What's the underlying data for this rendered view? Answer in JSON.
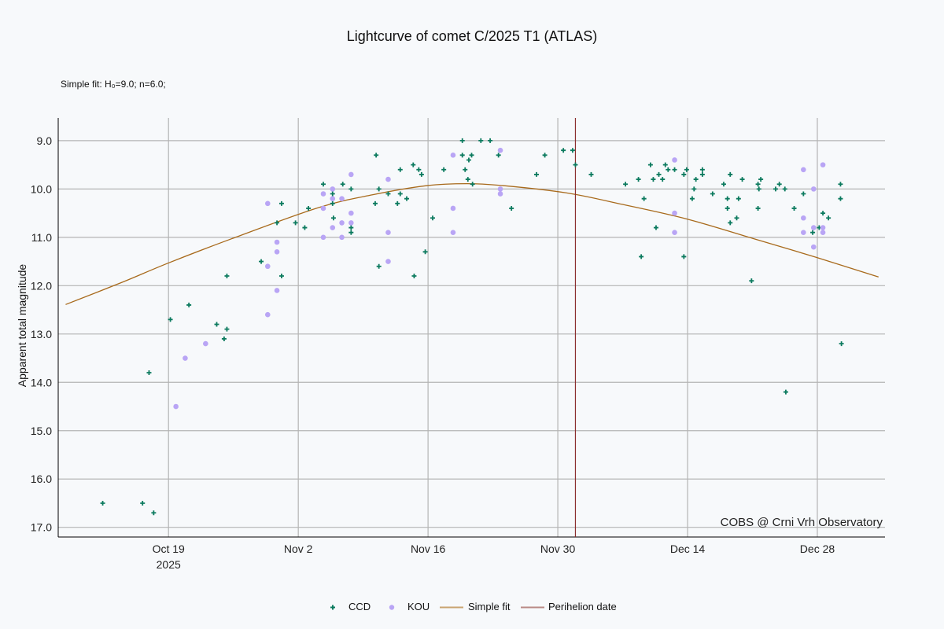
{
  "chart_data": {
    "type": "scatter",
    "title": "Lightcurve of comet C/2025 T1 (ATLAS)",
    "subtitle": "Simple fit: H₀=9.0; n=6.0;",
    "xlabel": "",
    "ylabel": "Apparent total magnitude",
    "x_unit": "days since 2025-10-19",
    "xlim": [
      -11.9,
      77.3
    ],
    "ylim": [
      17.2,
      8.53
    ],
    "y_inverted": true,
    "grid": true,
    "x_ticks": [
      {
        "value": 0,
        "label": "Oct 19",
        "sublabel": "2025"
      },
      {
        "value": 14,
        "label": "Nov 2"
      },
      {
        "value": 28,
        "label": "Nov 16"
      },
      {
        "value": 42,
        "label": "Nov 30"
      },
      {
        "value": 56,
        "label": "Dec 14"
      },
      {
        "value": 70,
        "label": "Dec 28"
      }
    ],
    "y_ticks": [
      {
        "value": 9,
        "label": "9.0"
      },
      {
        "value": 10,
        "label": "10.0"
      },
      {
        "value": 11,
        "label": "11.0"
      },
      {
        "value": 12,
        "label": "12.0"
      },
      {
        "value": 13,
        "label": "13.0"
      },
      {
        "value": 14,
        "label": "14.0"
      },
      {
        "value": 15,
        "label": "15.0"
      },
      {
        "value": 16,
        "label": "16.0"
      },
      {
        "value": 17,
        "label": "17.0"
      }
    ],
    "watermark": "COBS @ Crni Vrh Observatory",
    "legend_position": "bottom-center",
    "series": [
      {
        "name": "CCD",
        "kind": "marker-plus",
        "color": "#0b7a5e",
        "points": [
          [
            -7.1,
            16.5
          ],
          [
            -2.8,
            16.5
          ],
          [
            -1.6,
            16.7
          ],
          [
            -2.1,
            13.8
          ],
          [
            0.2,
            12.7
          ],
          [
            2.2,
            12.4
          ],
          [
            5.2,
            12.8
          ],
          [
            6.3,
            12.9
          ],
          [
            6.0,
            13.1
          ],
          [
            6.3,
            11.8
          ],
          [
            10.0,
            11.5
          ],
          [
            11.7,
            10.7
          ],
          [
            12.2,
            10.3
          ],
          [
            12.2,
            11.8
          ],
          [
            13.7,
            10.7
          ],
          [
            14.7,
            10.8
          ],
          [
            15.1,
            10.4
          ],
          [
            16.7,
            9.9
          ],
          [
            17.7,
            10.1
          ],
          [
            17.7,
            10.3
          ],
          [
            17.8,
            10.6
          ],
          [
            18.8,
            9.9
          ],
          [
            19.7,
            10.0
          ],
          [
            19.7,
            10.8
          ],
          [
            19.7,
            10.9
          ],
          [
            22.4,
            9.3
          ],
          [
            22.7,
            10.0
          ],
          [
            22.3,
            10.3
          ],
          [
            22.7,
            11.6
          ],
          [
            23.7,
            10.1
          ],
          [
            25.0,
            9.6
          ],
          [
            25.0,
            10.1
          ],
          [
            24.7,
            10.3
          ],
          [
            25.7,
            10.2
          ],
          [
            26.4,
            9.5
          ],
          [
            27.0,
            9.6
          ],
          [
            27.3,
            9.7
          ],
          [
            26.5,
            11.8
          ],
          [
            27.7,
            11.3
          ],
          [
            28.5,
            10.6
          ],
          [
            29.7,
            9.6
          ],
          [
            31.7,
            9.0
          ],
          [
            31.7,
            9.3
          ],
          [
            32.4,
            9.4
          ],
          [
            32.7,
            9.3
          ],
          [
            32.0,
            9.6
          ],
          [
            32.3,
            9.8
          ],
          [
            32.8,
            9.9
          ],
          [
            33.7,
            9.0
          ],
          [
            34.7,
            9.0
          ],
          [
            35.6,
            9.3
          ],
          [
            37.0,
            10.4
          ],
          [
            39.7,
            9.7
          ],
          [
            40.6,
            9.3
          ],
          [
            42.6,
            9.2
          ],
          [
            43.6,
            9.2
          ],
          [
            43.9,
            9.5
          ],
          [
            45.6,
            9.7
          ],
          [
            49.3,
            9.9
          ],
          [
            50.7,
            9.8
          ],
          [
            51.3,
            10.2
          ],
          [
            51.0,
            11.4
          ],
          [
            52.0,
            9.5
          ],
          [
            52.3,
            9.8
          ],
          [
            52.6,
            10.8
          ],
          [
            52.9,
            9.7
          ],
          [
            53.3,
            9.8
          ],
          [
            53.6,
            9.5
          ],
          [
            53.9,
            9.6
          ],
          [
            54.6,
            9.6
          ],
          [
            55.6,
            9.7
          ],
          [
            55.9,
            9.6
          ],
          [
            56.7,
            10.0
          ],
          [
            56.5,
            10.2
          ],
          [
            55.6,
            11.4
          ],
          [
            56.9,
            9.8
          ],
          [
            57.6,
            9.6
          ],
          [
            57.6,
            9.7
          ],
          [
            58.7,
            10.1
          ],
          [
            59.9,
            9.9
          ],
          [
            60.6,
            9.7
          ],
          [
            60.3,
            10.2
          ],
          [
            60.3,
            10.4
          ],
          [
            60.6,
            10.7
          ],
          [
            61.3,
            10.6
          ],
          [
            61.5,
            10.2
          ],
          [
            61.9,
            9.8
          ],
          [
            62.9,
            11.9
          ],
          [
            63.6,
            9.9
          ],
          [
            63.7,
            10.0
          ],
          [
            63.6,
            10.4
          ],
          [
            63.9,
            9.8
          ],
          [
            65.5,
            10.0
          ],
          [
            65.9,
            9.9
          ],
          [
            66.5,
            10.0
          ],
          [
            66.6,
            14.2
          ],
          [
            67.5,
            10.4
          ],
          [
            68.5,
            10.1
          ],
          [
            69.5,
            10.9
          ],
          [
            70.2,
            10.8
          ],
          [
            70.6,
            10.5
          ],
          [
            71.2,
            10.6
          ],
          [
            72.5,
            9.9
          ],
          [
            72.5,
            10.2
          ],
          [
            72.6,
            13.2
          ]
        ]
      },
      {
        "name": "KOU",
        "kind": "marker-dot",
        "color": "#b9a5f5",
        "points": [
          [
            10.7,
            10.3
          ],
          [
            11.7,
            11.1
          ],
          [
            11.7,
            11.3
          ],
          [
            10.7,
            11.6
          ],
          [
            11.7,
            12.1
          ],
          [
            10.7,
            12.6
          ],
          [
            4.0,
            13.2
          ],
          [
            1.8,
            13.5
          ],
          [
            0.8,
            14.5
          ],
          [
            16.7,
            10.1
          ],
          [
            16.7,
            10.4
          ],
          [
            16.7,
            11.0
          ],
          [
            17.7,
            10.0
          ],
          [
            17.7,
            10.2
          ],
          [
            17.7,
            10.8
          ],
          [
            18.7,
            10.2
          ],
          [
            18.7,
            10.7
          ],
          [
            18.7,
            11.0
          ],
          [
            19.7,
            9.7
          ],
          [
            19.7,
            10.5
          ],
          [
            19.7,
            10.7
          ],
          [
            23.7,
            9.8
          ],
          [
            23.7,
            10.9
          ],
          [
            23.7,
            11.5
          ],
          [
            30.7,
            9.3
          ],
          [
            30.7,
            10.4
          ],
          [
            30.7,
            10.9
          ],
          [
            35.8,
            9.2
          ],
          [
            35.8,
            10.0
          ],
          [
            35.8,
            10.1
          ],
          [
            54.6,
            9.4
          ],
          [
            54.6,
            10.5
          ],
          [
            54.6,
            10.9
          ],
          [
            68.5,
            9.6
          ],
          [
            68.5,
            10.6
          ],
          [
            68.5,
            10.9
          ],
          [
            69.6,
            10.0
          ],
          [
            69.6,
            10.8
          ],
          [
            69.6,
            11.2
          ],
          [
            70.6,
            9.5
          ],
          [
            70.6,
            10.8
          ],
          [
            70.6,
            10.9
          ]
        ]
      },
      {
        "name": "Simple fit",
        "kind": "line",
        "color": "#a86a1c",
        "points": [
          [
            -11.1,
            12.39
          ],
          [
            -5,
            11.93
          ],
          [
            0,
            11.53
          ],
          [
            6.8,
            11.03
          ],
          [
            16.1,
            10.39
          ],
          [
            22,
            10.12
          ],
          [
            27.9,
            9.93
          ],
          [
            32.2,
            9.89
          ],
          [
            36.1,
            9.93
          ],
          [
            42.9,
            10.08
          ],
          [
            49,
            10.32
          ],
          [
            55.9,
            10.62
          ],
          [
            63.0,
            11.02
          ],
          [
            69.8,
            11.41
          ],
          [
            76.6,
            11.82
          ]
        ]
      },
      {
        "name": "Perihelion date",
        "kind": "vline",
        "color": "#8b2e2e",
        "x": 43.9
      }
    ]
  }
}
